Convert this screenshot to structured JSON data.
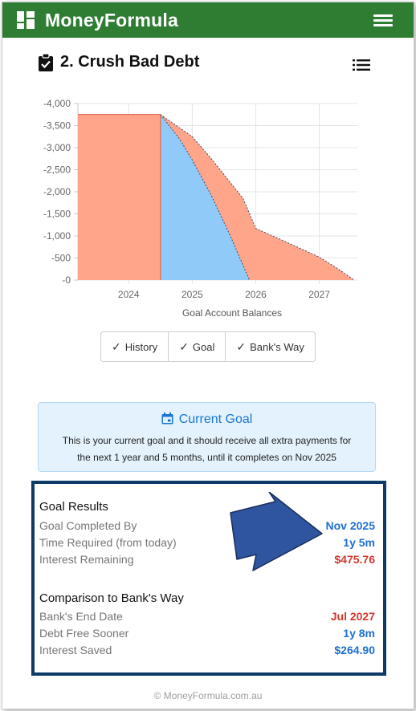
{
  "app": {
    "brand": "MoneyFormula",
    "brand_icon": "dashboard-icon",
    "menu_icon": "hamburger-menu-icon",
    "color": "#2e7d32"
  },
  "page": {
    "title": "2. Crush Bad Debt",
    "title_icon": "clipboard-check-icon",
    "list_icon": "list-icon"
  },
  "chart_data": {
    "type": "area",
    "title": "",
    "xlabel": "Goal Account Balances",
    "ylabel": "",
    "x_ticks": [
      2024,
      2025,
      2026,
      2027
    ],
    "y_ticks": [
      "-4,000",
      "-3,500",
      "-3,000",
      "-2,500",
      "-2,000",
      "-1,500",
      "-1,000",
      "-500",
      "-0"
    ],
    "ylim": [
      0,
      -4000
    ],
    "xlim": [
      2023.2,
      2027.6
    ],
    "grid": true,
    "series": [
      {
        "name": "Bank's Way",
        "color": "#ffa589",
        "x": [
          2023.2,
          2024.5,
          2025.0,
          2025.3,
          2025.55,
          2025.8,
          2026.0,
          2026.5,
          2027.0,
          2027.3,
          2027.55
        ],
        "y": [
          -3750,
          -3750,
          -3250,
          -2750,
          -2300,
          -1850,
          -1170,
          -850,
          -520,
          -250,
          0
        ]
      },
      {
        "name": "Goal",
        "color": "#90caf9",
        "x": [
          2024.5,
          2024.8,
          2025.0,
          2025.3,
          2025.6,
          2025.9
        ],
        "y": [
          -3750,
          -3200,
          -2720,
          -1920,
          -1000,
          0
        ]
      }
    ]
  },
  "legend": {
    "items": [
      {
        "label": "History",
        "check": "✓"
      },
      {
        "label": "Goal",
        "check": "✓"
      },
      {
        "label": "Bank's Way",
        "check": "✓"
      }
    ]
  },
  "current_goal": {
    "heading": "Current Goal",
    "icon": "calendar-icon",
    "line1": "This is your current goal and it should receive all extra payments for",
    "line2": "the next 1 year and 5 months, until it completes on Nov 2025",
    "color": "#1976d2"
  },
  "goal_results": {
    "title": "Goal Results",
    "rows": [
      {
        "label": "Goal Completed By",
        "value": "Nov 2025",
        "color": "blue"
      },
      {
        "label": "Time Required (from today)",
        "value": "1y 5m",
        "color": "blue"
      },
      {
        "label": "Interest Remaining",
        "value": "$475.76",
        "color": "red"
      }
    ]
  },
  "comparison": {
    "title": "Comparison to Bank's Way",
    "rows": [
      {
        "label": "Bank's End Date",
        "value": "Jul 2027",
        "color": "red"
      },
      {
        "label": "Debt Free Sooner",
        "value": "1y 8m",
        "color": "blue"
      },
      {
        "label": "Interest Saved",
        "value": "$264.90",
        "color": "blue"
      }
    ]
  },
  "annotation": {
    "icon": "arrow-right-icon",
    "color": "#2f55a0"
  },
  "footer": {
    "text": "© MoneyFormula.com.au"
  }
}
